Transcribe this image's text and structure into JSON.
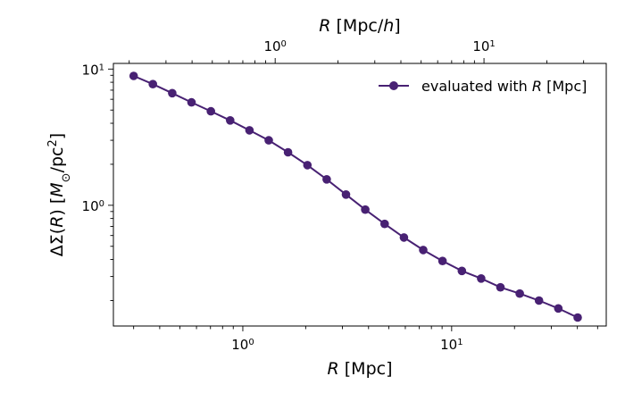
{
  "chart_data": {
    "type": "line",
    "xscale": "log",
    "yscale": "log",
    "xlim": [
      0.24,
      55
    ],
    "ylim": [
      0.13,
      11
    ],
    "top_axis": {
      "label_italic": "R",
      "label_pre": " [Mpc/",
      "label_unit_italic": "h",
      "label_post": "]",
      "tick_labels": [
        {
          "text": "10",
          "sup": "0",
          "value": 1.0
        },
        {
          "text": "10",
          "sup": "1",
          "value": 10.0
        }
      ],
      "h": 0.7
    },
    "xaxis": {
      "label_italic": "R",
      "label_post": " [Mpc]",
      "tick_labels": [
        {
          "text": "10",
          "sup": "0",
          "value": 1.0
        },
        {
          "text": "10",
          "sup": "1",
          "value": 10.0
        }
      ]
    },
    "yaxis": {
      "label_pre": "ΔΣ(",
      "label_italic": "R",
      "label_mid": ") [",
      "label_unit_italic": "M",
      "label_sub": "⊙",
      "label_post": "/pc",
      "label_sup": "2",
      "label_end": "]",
      "tick_labels": [
        {
          "text": "10",
          "sup": "0",
          "value": 1.0
        },
        {
          "text": "10",
          "sup": "1",
          "value": 10.0
        }
      ]
    },
    "series": [
      {
        "name_pre": "evaluated with ",
        "name_italic": "R",
        "name_post": " [Mpc]",
        "color": "#482173",
        "x": [
          0.3,
          0.371,
          0.459,
          0.568,
          0.703,
          0.87,
          1.076,
          1.331,
          1.647,
          2.038,
          2.521,
          3.119,
          3.859,
          4.775,
          5.907,
          7.308,
          9.042,
          11.19,
          13.84,
          17.12,
          21.18,
          26.21,
          32.43,
          40.12
        ],
        "y": [
          8.9,
          7.75,
          6.65,
          5.7,
          4.9,
          4.2,
          3.55,
          3.0,
          2.45,
          1.97,
          1.55,
          1.2,
          0.93,
          0.73,
          0.58,
          0.47,
          0.39,
          0.33,
          0.29,
          0.25,
          0.225,
          0.2,
          0.175,
          0.15
        ]
      }
    ],
    "legend_position": "top-right",
    "grid": false
  }
}
